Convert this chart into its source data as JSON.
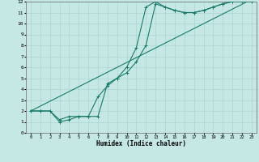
{
  "xlabel": "Humidex (Indice chaleur)",
  "ylabel": "",
  "bg_color": "#c5e8e5",
  "grid_color": "#aad4d0",
  "line_color": "#1a7a6a",
  "xlim": [
    -0.5,
    23.5
  ],
  "ylim": [
    0,
    12
  ],
  "xticks": [
    0,
    1,
    2,
    3,
    4,
    5,
    6,
    7,
    8,
    9,
    10,
    11,
    12,
    13,
    14,
    15,
    16,
    17,
    18,
    19,
    20,
    21,
    22,
    23
  ],
  "yticks": [
    0,
    1,
    2,
    3,
    4,
    5,
    6,
    7,
    8,
    9,
    10,
    11,
    12
  ],
  "line1_x": [
    0,
    1,
    2,
    3,
    4,
    5,
    6,
    7,
    8,
    9,
    10,
    11,
    12,
    13,
    14,
    15,
    16,
    17,
    18,
    19,
    20,
    21,
    22,
    23
  ],
  "line1_y": [
    2.0,
    2.0,
    2.0,
    1.2,
    1.5,
    1.5,
    1.5,
    1.5,
    4.5,
    5.0,
    5.5,
    6.5,
    8.0,
    11.8,
    11.5,
    11.2,
    11.0,
    11.0,
    11.2,
    11.5,
    11.8,
    12.0,
    12.0,
    12.0
  ],
  "line2_x": [
    0,
    1,
    2,
    3,
    4,
    5,
    6,
    7,
    8,
    9,
    10,
    11,
    12,
    13,
    14,
    15,
    16,
    17,
    18,
    19,
    20,
    21,
    22,
    23
  ],
  "line2_y": [
    2.0,
    2.0,
    2.0,
    1.0,
    1.2,
    1.5,
    1.5,
    3.3,
    4.3,
    5.0,
    6.0,
    7.8,
    11.5,
    12.0,
    11.5,
    11.2,
    11.0,
    11.0,
    11.2,
    11.5,
    11.8,
    12.0,
    12.2,
    12.2
  ],
  "line3_x": [
    0,
    23
  ],
  "line3_y": [
    2.0,
    12.2
  ],
  "marker": "+"
}
